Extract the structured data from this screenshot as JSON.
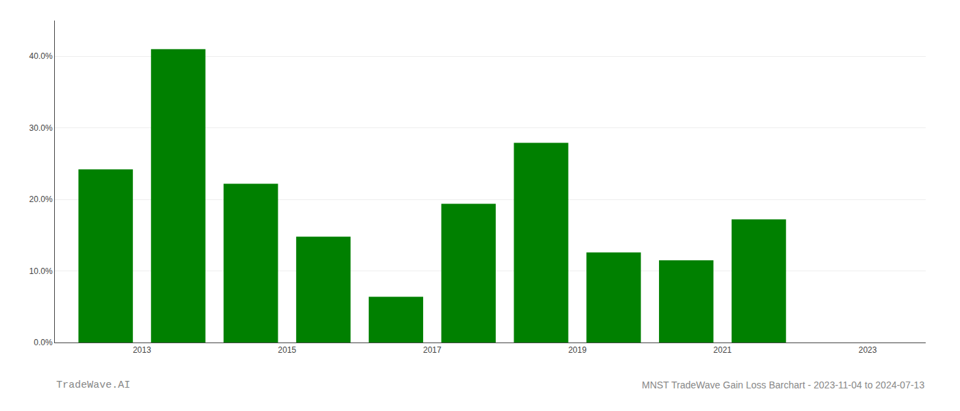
{
  "chart_data": {
    "type": "bar",
    "title": "MNST TradeWave Gain Loss Barchart - 2023-11-04 to 2024-07-13",
    "annotations": [
      "TradeWave.AI"
    ],
    "x": [
      2012.5,
      2013.5,
      2014.5,
      2015.5,
      2016.5,
      2017.5,
      2018.5,
      2019.5,
      2020.5,
      2021.5
    ],
    "values": [
      0.242,
      0.41,
      0.222,
      0.148,
      0.064,
      0.194,
      0.279,
      0.126,
      0.115,
      0.172
    ],
    "color": "#008000",
    "xlim": [
      2011.8,
      2023.8
    ],
    "xticks": [
      2013,
      2015,
      2017,
      2019,
      2021,
      2023
    ],
    "ylim": [
      0,
      0.45
    ],
    "yticks": [
      {
        "value": 0.0,
        "label": "0.0%"
      },
      {
        "value": 0.1,
        "label": "10.0%"
      },
      {
        "value": 0.2,
        "label": "20.0%"
      },
      {
        "value": 0.3,
        "label": "30.0%"
      },
      {
        "value": 0.4,
        "label": "40.0%"
      }
    ],
    "grid": true
  }
}
